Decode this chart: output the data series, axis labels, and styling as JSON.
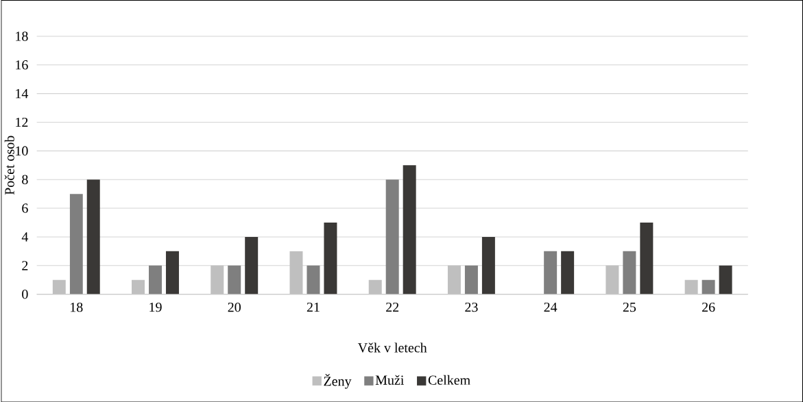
{
  "chart_data": {
    "type": "bar",
    "xlabel": "Věk v letech",
    "ylabel": "Počet osob",
    "categories": [
      "18",
      "19",
      "20",
      "21",
      "22",
      "23",
      "24",
      "25",
      "26"
    ],
    "series": [
      {
        "name": "Ženy",
        "color": "#bfbfbf",
        "values": [
          1,
          1,
          2,
          3,
          1,
          2,
          null,
          2,
          1
        ]
      },
      {
        "name": "Muži",
        "color": "#7f7f7f",
        "values": [
          7,
          2,
          2,
          2,
          8,
          2,
          3,
          3,
          1
        ]
      },
      {
        "name": "Celkem",
        "color": "#3a3836",
        "values": [
          8,
          3,
          4,
          5,
          9,
          4,
          3,
          5,
          2
        ]
      }
    ],
    "ylim": [
      0,
      18
    ],
    "yticks": [
      0,
      2,
      4,
      6,
      8,
      10,
      12,
      14,
      16,
      18
    ],
    "grid": "y",
    "legend": "bottom"
  }
}
